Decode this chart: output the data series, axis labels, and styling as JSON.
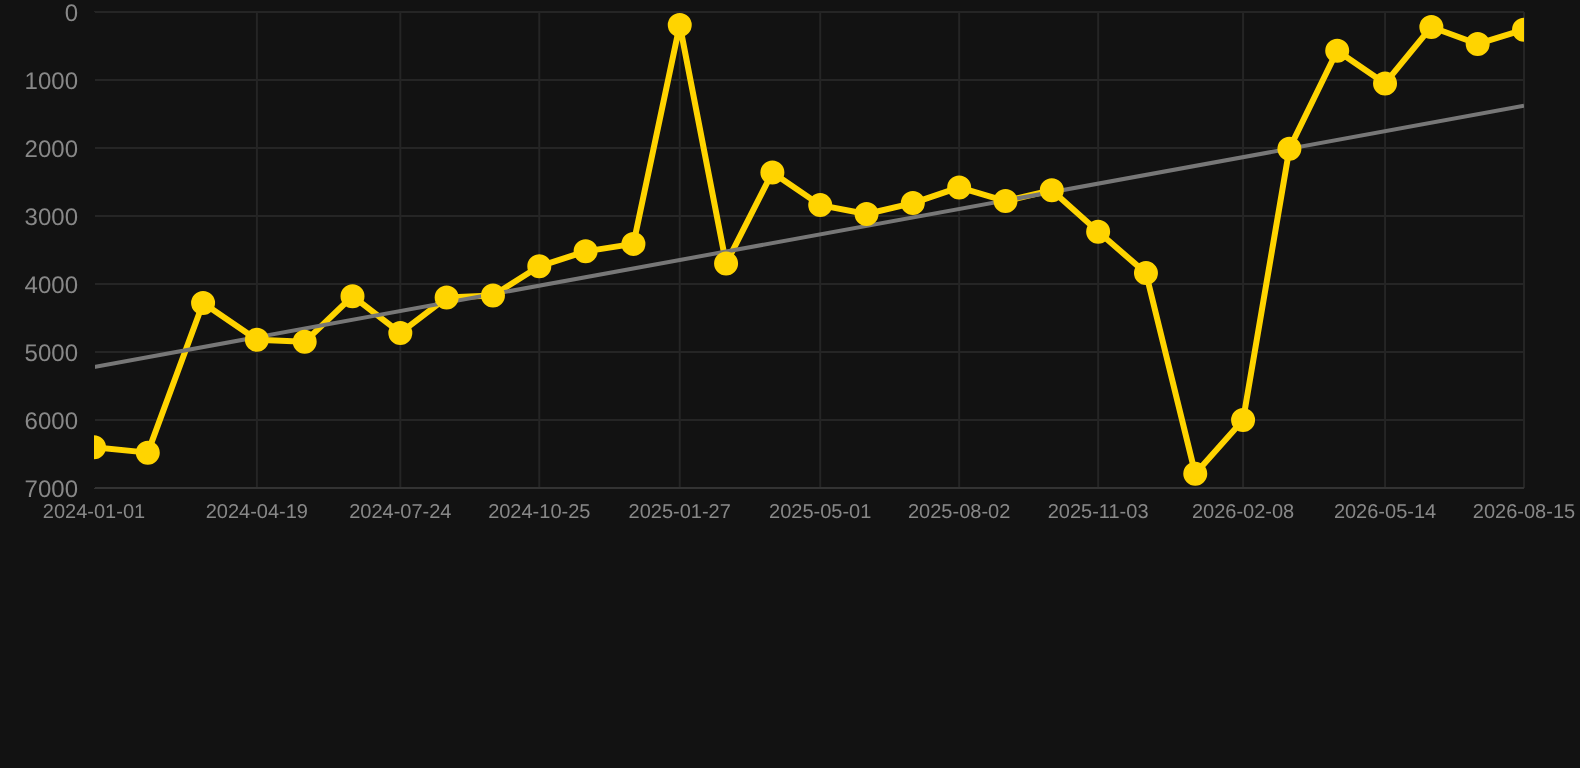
{
  "chart_data": {
    "type": "line",
    "x": [
      "2024-01-01",
      "2024-02-06",
      "2024-03-14",
      "2024-04-19",
      "2024-05-21",
      "2024-06-22",
      "2024-07-24",
      "2024-08-24",
      "2024-09-24",
      "2024-10-25",
      "2024-11-25",
      "2024-12-27",
      "2025-01-27",
      "2025-02-27",
      "2025-03-30",
      "2025-05-01",
      "2025-06-01",
      "2025-07-02",
      "2025-08-02",
      "2025-09-02",
      "2025-10-03",
      "2025-11-03",
      "2025-12-05",
      "2026-01-07",
      "2026-02-08",
      "2026-03-11",
      "2026-04-12",
      "2026-05-14",
      "2026-06-14",
      "2026-07-15",
      "2026-08-15"
    ],
    "series": [
      {
        "color": "#ffd400",
        "values": [
          6400,
          6480,
          4280,
          4820,
          4850,
          4180,
          4720,
          4200,
          4170,
          3740,
          3520,
          3410,
          190,
          3700,
          2360,
          2840,
          2970,
          2810,
          2580,
          2780,
          2620,
          3230,
          3840,
          6790,
          6000,
          2010,
          570,
          1050,
          220,
          470,
          260
        ]
      },
      {
        "type": "line",
        "color": "#777777",
        "marker": "none",
        "x": [
          "2024-01-01",
          "2026-08-15"
        ],
        "values": [
          5220,
          1380
        ]
      }
    ],
    "ylim": [
      7000,
      0
    ],
    "yticks": [
      0,
      1000,
      2000,
      3000,
      4000,
      5000,
      6000,
      7000
    ],
    "xlim": [
      "2024-01-01",
      "2026-08-15"
    ],
    "xticks": [
      "2024-01-01",
      "2024-04-19",
      "2024-07-24",
      "2024-10-25",
      "2025-01-27",
      "2025-05-01",
      "2025-08-02",
      "2025-11-03",
      "2026-02-08",
      "2026-05-14",
      "2026-08-15"
    ],
    "grid": true,
    "marker": "circle",
    "line_style": "solid"
  }
}
